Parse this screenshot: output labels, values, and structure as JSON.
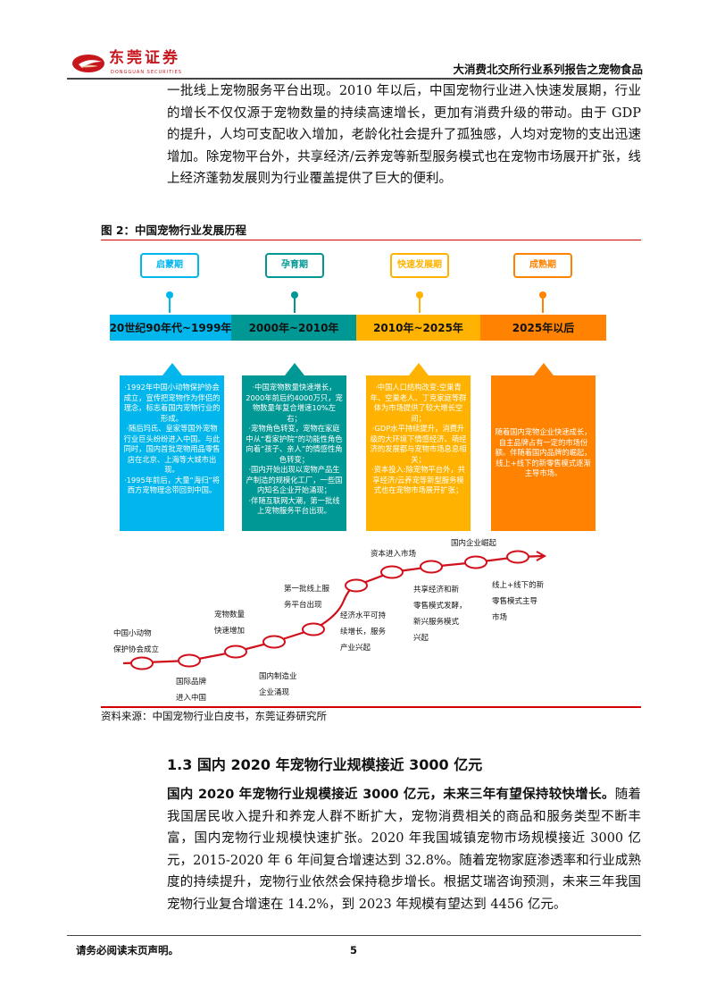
{
  "header": {
    "logo_cn": "东莞证券",
    "logo_en": "DONGGUAN SECURITIES",
    "report_title": "大消费北交所行业系列报告之宠物食品",
    "brand_color": "#c8161d"
  },
  "intro_paragraph": "一批线上宠物服务平台出现。2010 年以后，中国宠物行业进入快速发展期，行业的增长不仅仅源于宠物数量的持续高速增长，更加有消费升级的带动。由于 GDP 的提升，人均可支配收入增加，老龄化社会提升了孤独感，人均对宠物的支出迅速增加。除宠物平台外，共享经济/云养宠等新型服务模式也在宠物市场展开扩张，线上经济蓬勃发展则为行业覆盖提供了巨大的便利。",
  "figure": {
    "title": "图 2：中国宠物行业发展历程",
    "phases": [
      {
        "name": "启蒙期",
        "period": "20世纪90年代~1999年",
        "color": "#00b6ec",
        "desc": "·1992年中国小动物保护协会成立，宣传把宠物作为伴侣的理念，标志着国内宠物行业的形成。\n·随后玛氏、皇家等国外宠物行业巨头纷纷进入中国。与此同时，国内首批宠物用品零售店在北京、上海等大城市出现。\n·1995年前后，大量“海归”将西方宠物理念带回到中国。"
      },
      {
        "name": "孕育期",
        "period": "2000年~2010年",
        "color": "#009895",
        "desc": "·中国宠物数量快速增长，2000年前后约4000万只，宠物数量年复合增速10%左右；\n·宠物角色转变，宠物在家庭中从“看家护院”的功能性角色向着“孩子、亲人”的情感性角色转变；\n·国内开始出现以宠物产品生产制造的规模化工厂，一些国内知名企业开始涌现；\n·伴随互联网大潮，第一批线上宠物服务平台出现。"
      },
      {
        "name": "快速发展期",
        "period": "2010年~2025年",
        "color": "#ffb300",
        "desc": "·中国人口结构改变:空巢青年、空巢老人、丁克家庭等群体为市场提供了较大增长空间；\n·GDP水平持续提升，消费升级的大环境下情感经济、萌经济的发展都与宠物市场息息相关；\n·资本投入:除宠物平台外，共享经济/云养宠等新型服务模式也在宠物市场展开扩张；"
      },
      {
        "name": "成熟期",
        "period": "2025年以后",
        "color": "#ff8200",
        "desc": "随着国内宠物企业快速成长，自主品牌占有一定的市场份额。伴随着国内品牌的崛起，线上+线下的新零售模式逐渐主导市场。"
      }
    ],
    "milestones_above": [
      "中国小动物\n保护协会成立",
      "宠物数量\n快速增加",
      "第一批线上服\n务平台出现",
      "资本进入市场",
      "国内企业崛起"
    ],
    "milestones_below": [
      "国际品牌\n进入中国",
      "国内制造业\n企业涌现",
      "经济水平可持\n续增长，服务\n产业兴起",
      "共享经济和新\n零售模式发酵，\n新兴服务模式\n兴起",
      "线上+线下的新\n零售模式主导\n市场"
    ],
    "curve_color": "#d0101a",
    "source": "资料来源：中国宠物行业白皮书，东莞证券研究所"
  },
  "section": {
    "heading": "1.3 国内 2020 年宠物行业规模接近 3000 亿元",
    "lead_bold": "国内 2020 年宠物行业规模接近 3000 亿元，未来三年有望保持较快增长。",
    "body": "随着我国居民收入提升和养宠人群不断扩大，宠物消费相关的商品和服务类型不断丰富，国内宠物行业规模快速扩张。2020 年我国城镇宠物市场规模接近 3000 亿元，2015-2020 年 6 年间复合增速达到 32.8%。随着宠物家庭渗透率和行业成熟度的持续提升，宠物行业依然会保持稳步增长。根据艾瑞咨询预测，未来三年我国宠物行业复合增速在 14.2%，到 2023 年规模有望达到 4456 亿元。"
  },
  "footer": {
    "disclaimer": "请务必阅读末页声明。",
    "page_number": "5"
  }
}
